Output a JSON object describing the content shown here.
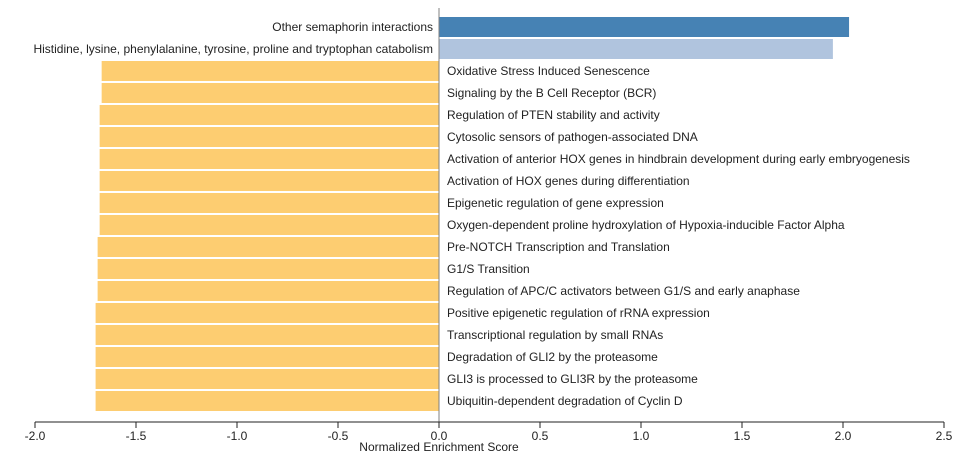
{
  "chart_data": {
    "type": "bar",
    "orientation": "horizontal",
    "xlabel": "Normalized Enrichment Score",
    "xlim": [
      -2.0,
      2.5
    ],
    "xticks": [
      -2.0,
      -1.5,
      -1.0,
      -0.5,
      0.0,
      0.5,
      1.0,
      1.5,
      2.0,
      2.5
    ],
    "xtick_labels": [
      "-2.0",
      "-1.5",
      "-1.0",
      "-0.5",
      "0.0",
      "0.5",
      "1.0",
      "1.5",
      "2.0",
      "2.5"
    ],
    "grid": false,
    "colors": {
      "positive_strong": "#4682b4",
      "positive_light": "#b0c4de",
      "negative": "#fdcd71",
      "zero_line": "#808080",
      "axis": "#222222"
    },
    "bars": [
      {
        "label": "Other semaphorin interactions",
        "value": 2.03,
        "color": "#4682b4"
      },
      {
        "label": "Histidine, lysine, phenylalanine, tyrosine, proline and tryptophan catabolism",
        "value": 1.95,
        "color": "#b0c4de"
      },
      {
        "label": "Oxidative Stress Induced Senescence",
        "value": -1.67,
        "color": "#fdcd71"
      },
      {
        "label": "Signaling by the B Cell Receptor (BCR)",
        "value": -1.67,
        "color": "#fdcd71"
      },
      {
        "label": "Regulation of PTEN stability and activity",
        "value": -1.68,
        "color": "#fdcd71"
      },
      {
        "label": "Cytosolic sensors of pathogen-associated DNA",
        "value": -1.68,
        "color": "#fdcd71"
      },
      {
        "label": "Activation of anterior HOX genes in hindbrain development during early embryogenesis",
        "value": -1.68,
        "color": "#fdcd71"
      },
      {
        "label": "Activation of HOX genes during differentiation",
        "value": -1.68,
        "color": "#fdcd71"
      },
      {
        "label": "Epigenetic regulation of gene expression",
        "value": -1.68,
        "color": "#fdcd71"
      },
      {
        "label": "Oxygen-dependent proline hydroxylation of Hypoxia-inducible Factor Alpha",
        "value": -1.68,
        "color": "#fdcd71"
      },
      {
        "label": "Pre-NOTCH Transcription and Translation",
        "value": -1.69,
        "color": "#fdcd71"
      },
      {
        "label": "G1/S Transition",
        "value": -1.69,
        "color": "#fdcd71"
      },
      {
        "label": "Regulation of APC/C activators between G1/S and early anaphase",
        "value": -1.69,
        "color": "#fdcd71"
      },
      {
        "label": "Positive epigenetic regulation of rRNA expression",
        "value": -1.7,
        "color": "#fdcd71"
      },
      {
        "label": "Transcriptional regulation by small RNAs",
        "value": -1.7,
        "color": "#fdcd71"
      },
      {
        "label": "Degradation of GLI2 by the proteasome",
        "value": -1.7,
        "color": "#fdcd71"
      },
      {
        "label": "GLI3 is processed to GLI3R by the proteasome",
        "value": -1.7,
        "color": "#fdcd71"
      },
      {
        "label": "Ubiquitin-dependent degradation of Cyclin D",
        "value": -1.7,
        "color": "#fdcd71"
      }
    ]
  }
}
